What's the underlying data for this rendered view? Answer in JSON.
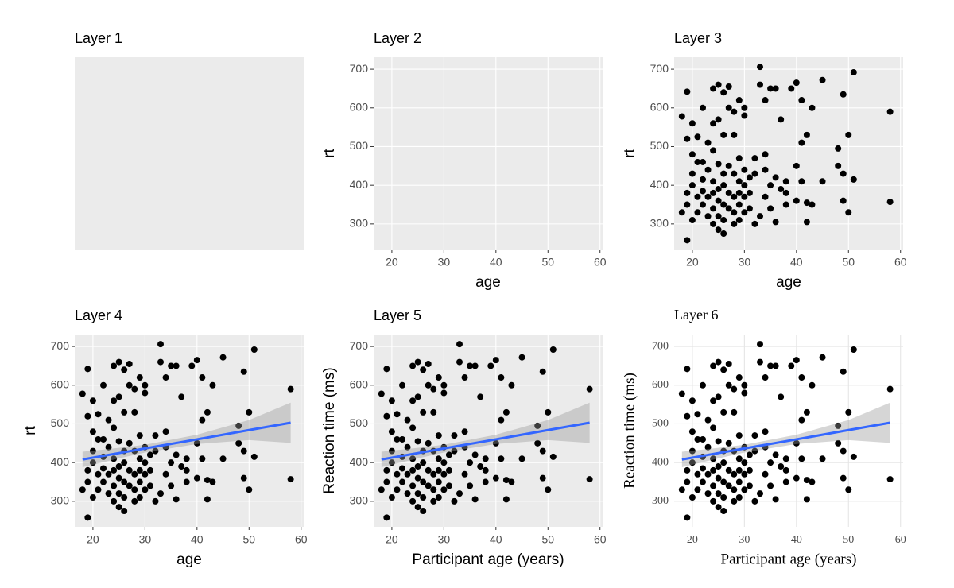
{
  "chart_data": [
    {
      "type": "blank",
      "title": "Layer 1",
      "theme": "gray",
      "font": "sans"
    },
    {
      "type": "scatter",
      "title": "Layer 2",
      "xlabel": "age",
      "ylabel": "rt",
      "theme": "gray",
      "font": "sans",
      "xlim": [
        16.5,
        60.5
      ],
      "ylim": [
        234,
        731
      ],
      "xticks": [
        20,
        30,
        40,
        50,
        60
      ],
      "yticks": [
        300,
        400,
        500,
        600,
        700
      ],
      "grid": true
    },
    {
      "type": "scatter",
      "title": "Layer 3",
      "xlabel": "age",
      "ylabel": "rt",
      "theme": "gray",
      "font": "sans",
      "color": "#000000",
      "xlim": [
        16.5,
        60.5
      ],
      "ylim": [
        234,
        731
      ],
      "xticks": [
        20,
        30,
        40,
        50,
        60
      ],
      "yticks": [
        300,
        400,
        500,
        600,
        700
      ],
      "grid": true,
      "x": [
        18,
        18,
        19,
        19,
        19,
        19,
        19,
        20,
        20,
        20,
        20,
        20,
        21,
        21,
        21,
        21,
        22,
        22,
        22,
        22,
        22,
        23,
        23,
        23,
        23,
        24,
        24,
        24,
        24,
        24,
        24,
        24,
        25,
        25,
        25,
        25,
        25,
        25,
        25,
        26,
        26,
        26,
        26,
        26,
        26,
        26,
        27,
        27,
        27,
        27,
        27,
        28,
        28,
        28,
        28,
        28,
        28,
        29,
        29,
        29,
        29,
        29,
        29,
        30,
        30,
        30,
        30,
        30,
        30,
        31,
        31,
        31,
        32,
        32,
        32,
        33,
        33,
        33,
        34,
        34,
        34,
        34,
        35,
        35,
        35,
        36,
        36,
        36,
        37,
        37,
        38,
        38,
        38,
        39,
        40,
        40,
        40,
        41,
        41,
        41,
        42,
        42,
        42,
        43,
        43,
        45,
        45,
        48,
        48,
        49,
        49,
        49,
        50,
        50,
        51,
        51,
        58,
        58
      ],
      "values": [
        578,
        330,
        258,
        642,
        520,
        380,
        350,
        560,
        480,
        430,
        310,
        400,
        525,
        460,
        370,
        330,
        600,
        460,
        415,
        385,
        350,
        510,
        440,
        370,
        320,
        650,
        560,
        490,
        410,
        380,
        340,
        300,
        660,
        570,
        455,
        390,
        360,
        320,
        285,
        640,
        530,
        430,
        400,
        350,
        310,
        275,
        655,
        600,
        450,
        380,
        340,
        590,
        530,
        430,
        370,
        330,
        300,
        620,
        470,
        410,
        380,
        350,
        310,
        600,
        580,
        440,
        400,
        370,
        330,
        420,
        380,
        340,
        470,
        430,
        300,
        706,
        660,
        320,
        620,
        480,
        440,
        370,
        650,
        400,
        340,
        650,
        420,
        305,
        570,
        390,
        410,
        380,
        350,
        650,
        665,
        450,
        360,
        620,
        510,
        410,
        530,
        355,
        305,
        600,
        350,
        672,
        410,
        495,
        450,
        635,
        430,
        360,
        530,
        330,
        692,
        415,
        590,
        357
      ]
    },
    {
      "type": "scatter",
      "title": "Layer 4",
      "xlabel": "age",
      "ylabel": "rt",
      "theme": "gray",
      "font": "sans",
      "color": "#000000",
      "xlim": [
        16.5,
        60.5
      ],
      "ylim": [
        234,
        731
      ],
      "xticks": [
        20,
        30,
        40,
        50,
        60
      ],
      "yticks": [
        300,
        400,
        500,
        600,
        700
      ],
      "grid": true,
      "x": [
        18,
        18,
        19,
        19,
        19,
        19,
        19,
        20,
        20,
        20,
        20,
        20,
        21,
        21,
        21,
        21,
        22,
        22,
        22,
        22,
        22,
        23,
        23,
        23,
        23,
        24,
        24,
        24,
        24,
        24,
        24,
        24,
        25,
        25,
        25,
        25,
        25,
        25,
        25,
        26,
        26,
        26,
        26,
        26,
        26,
        26,
        27,
        27,
        27,
        27,
        27,
        28,
        28,
        28,
        28,
        28,
        28,
        29,
        29,
        29,
        29,
        29,
        29,
        30,
        30,
        30,
        30,
        30,
        30,
        31,
        31,
        31,
        32,
        32,
        32,
        33,
        33,
        33,
        34,
        34,
        34,
        34,
        35,
        35,
        35,
        36,
        36,
        36,
        37,
        37,
        38,
        38,
        38,
        39,
        40,
        40,
        40,
        41,
        41,
        41,
        42,
        42,
        42,
        43,
        43,
        45,
        45,
        48,
        48,
        49,
        49,
        49,
        50,
        50,
        51,
        51,
        58,
        58
      ],
      "values": [
        578,
        330,
        258,
        642,
        520,
        380,
        350,
        560,
        480,
        430,
        310,
        400,
        525,
        460,
        370,
        330,
        600,
        460,
        415,
        385,
        350,
        510,
        440,
        370,
        320,
        650,
        560,
        490,
        410,
        380,
        340,
        300,
        660,
        570,
        455,
        390,
        360,
        320,
        285,
        640,
        530,
        430,
        400,
        350,
        310,
        275,
        655,
        600,
        450,
        380,
        340,
        590,
        530,
        430,
        370,
        330,
        300,
        620,
        470,
        410,
        380,
        350,
        310,
        600,
        580,
        440,
        400,
        370,
        330,
        420,
        380,
        340,
        470,
        430,
        300,
        706,
        660,
        320,
        620,
        480,
        440,
        370,
        650,
        400,
        340,
        650,
        420,
        305,
        570,
        390,
        410,
        380,
        350,
        650,
        665,
        450,
        360,
        620,
        510,
        410,
        530,
        355,
        305,
        600,
        350,
        672,
        410,
        495,
        450,
        635,
        430,
        360,
        530,
        330,
        692,
        415,
        590,
        357
      ],
      "fit": {
        "x": [
          18,
          25,
          30,
          40,
          50,
          58
        ],
        "values": [
          408,
          424.6,
          436.5,
          460,
          484,
          503
        ],
        "lower": [
          388,
          411,
          426,
          448,
          458,
          451
        ],
        "upper": [
          428,
          438,
          446,
          472,
          510,
          555
        ],
        "color": "#3366FF",
        "band_color": "#999999"
      }
    },
    {
      "type": "scatter",
      "title": "Layer 5",
      "xlabel": "Participant age (years)",
      "ylabel": "Reaction time (ms)",
      "theme": "gray",
      "font": "sans",
      "color": "#000000",
      "xlim": [
        16.5,
        60.5
      ],
      "ylim": [
        234,
        731
      ],
      "xticks": [
        20,
        30,
        40,
        50,
        60
      ],
      "yticks": [
        300,
        400,
        500,
        600,
        700
      ],
      "grid": true,
      "x": [
        18,
        18,
        19,
        19,
        19,
        19,
        19,
        20,
        20,
        20,
        20,
        20,
        21,
        21,
        21,
        21,
        22,
        22,
        22,
        22,
        22,
        23,
        23,
        23,
        23,
        24,
        24,
        24,
        24,
        24,
        24,
        24,
        25,
        25,
        25,
        25,
        25,
        25,
        25,
        26,
        26,
        26,
        26,
        26,
        26,
        26,
        27,
        27,
        27,
        27,
        27,
        28,
        28,
        28,
        28,
        28,
        28,
        29,
        29,
        29,
        29,
        29,
        29,
        30,
        30,
        30,
        30,
        30,
        30,
        31,
        31,
        31,
        32,
        32,
        32,
        33,
        33,
        33,
        34,
        34,
        34,
        34,
        35,
        35,
        35,
        36,
        36,
        36,
        37,
        37,
        38,
        38,
        38,
        39,
        40,
        40,
        40,
        41,
        41,
        41,
        42,
        42,
        42,
        43,
        43,
        45,
        45,
        48,
        48,
        49,
        49,
        49,
        50,
        50,
        51,
        51,
        58,
        58
      ],
      "values": [
        578,
        330,
        258,
        642,
        520,
        380,
        350,
        560,
        480,
        430,
        310,
        400,
        525,
        460,
        370,
        330,
        600,
        460,
        415,
        385,
        350,
        510,
        440,
        370,
        320,
        650,
        560,
        490,
        410,
        380,
        340,
        300,
        660,
        570,
        455,
        390,
        360,
        320,
        285,
        640,
        530,
        430,
        400,
        350,
        310,
        275,
        655,
        600,
        450,
        380,
        340,
        590,
        530,
        430,
        370,
        330,
        300,
        620,
        470,
        410,
        380,
        350,
        310,
        600,
        580,
        440,
        400,
        370,
        330,
        420,
        380,
        340,
        470,
        430,
        300,
        706,
        660,
        320,
        620,
        480,
        440,
        370,
        650,
        400,
        340,
        650,
        420,
        305,
        570,
        390,
        410,
        380,
        350,
        650,
        665,
        450,
        360,
        620,
        510,
        410,
        530,
        355,
        305,
        600,
        350,
        672,
        410,
        495,
        450,
        635,
        430,
        360,
        530,
        330,
        692,
        415,
        590,
        357
      ],
      "fit": {
        "x": [
          18,
          25,
          30,
          40,
          50,
          58
        ],
        "values": [
          408,
          424.6,
          436.5,
          460,
          484,
          503
        ],
        "lower": [
          388,
          411,
          426,
          448,
          458,
          451
        ],
        "upper": [
          428,
          438,
          446,
          472,
          510,
          555
        ],
        "color": "#3366FF",
        "band_color": "#999999"
      }
    },
    {
      "type": "scatter",
      "title": "Layer 6",
      "xlabel": "Participant age (years)",
      "ylabel": "Reaction time (ms)",
      "theme": "minimal",
      "font": "serif",
      "color": "#000000",
      "xlim": [
        16.5,
        60.5
      ],
      "ylim": [
        234,
        731
      ],
      "xticks": [
        20,
        30,
        40,
        50,
        60
      ],
      "yticks": [
        300,
        400,
        500,
        600,
        700
      ],
      "grid": true,
      "x": [
        18,
        18,
        19,
        19,
        19,
        19,
        19,
        20,
        20,
        20,
        20,
        20,
        21,
        21,
        21,
        21,
        22,
        22,
        22,
        22,
        22,
        23,
        23,
        23,
        23,
        24,
        24,
        24,
        24,
        24,
        24,
        24,
        25,
        25,
        25,
        25,
        25,
        25,
        25,
        26,
        26,
        26,
        26,
        26,
        26,
        26,
        27,
        27,
        27,
        27,
        27,
        28,
        28,
        28,
        28,
        28,
        28,
        29,
        29,
        29,
        29,
        29,
        29,
        30,
        30,
        30,
        30,
        30,
        30,
        31,
        31,
        31,
        32,
        32,
        32,
        33,
        33,
        33,
        34,
        34,
        34,
        34,
        35,
        35,
        35,
        36,
        36,
        36,
        37,
        37,
        38,
        38,
        38,
        39,
        40,
        40,
        40,
        41,
        41,
        41,
        42,
        42,
        42,
        43,
        43,
        45,
        45,
        48,
        48,
        49,
        49,
        49,
        50,
        50,
        51,
        51,
        58,
        58
      ],
      "values": [
        578,
        330,
        258,
        642,
        520,
        380,
        350,
        560,
        480,
        430,
        310,
        400,
        525,
        460,
        370,
        330,
        600,
        460,
        415,
        385,
        350,
        510,
        440,
        370,
        320,
        650,
        560,
        490,
        410,
        380,
        340,
        300,
        660,
        570,
        455,
        390,
        360,
        320,
        285,
        640,
        530,
        430,
        400,
        350,
        310,
        275,
        655,
        600,
        450,
        380,
        340,
        590,
        530,
        430,
        370,
        330,
        300,
        620,
        470,
        410,
        380,
        350,
        310,
        600,
        580,
        440,
        400,
        370,
        330,
        420,
        380,
        340,
        470,
        430,
        300,
        706,
        660,
        320,
        620,
        480,
        440,
        370,
        650,
        400,
        340,
        650,
        420,
        305,
        570,
        390,
        410,
        380,
        350,
        650,
        665,
        450,
        360,
        620,
        510,
        410,
        530,
        355,
        305,
        600,
        350,
        672,
        410,
        495,
        450,
        635,
        430,
        360,
        530,
        330,
        692,
        415,
        590,
        357
      ],
      "fit": {
        "x": [
          18,
          25,
          30,
          40,
          50,
          58
        ],
        "values": [
          408,
          424.6,
          436.5,
          460,
          484,
          503
        ],
        "lower": [
          388,
          411,
          426,
          448,
          458,
          451
        ],
        "upper": [
          428,
          438,
          446,
          472,
          510,
          555
        ],
        "color": "#3366FF",
        "band_color": "#999999"
      }
    }
  ]
}
